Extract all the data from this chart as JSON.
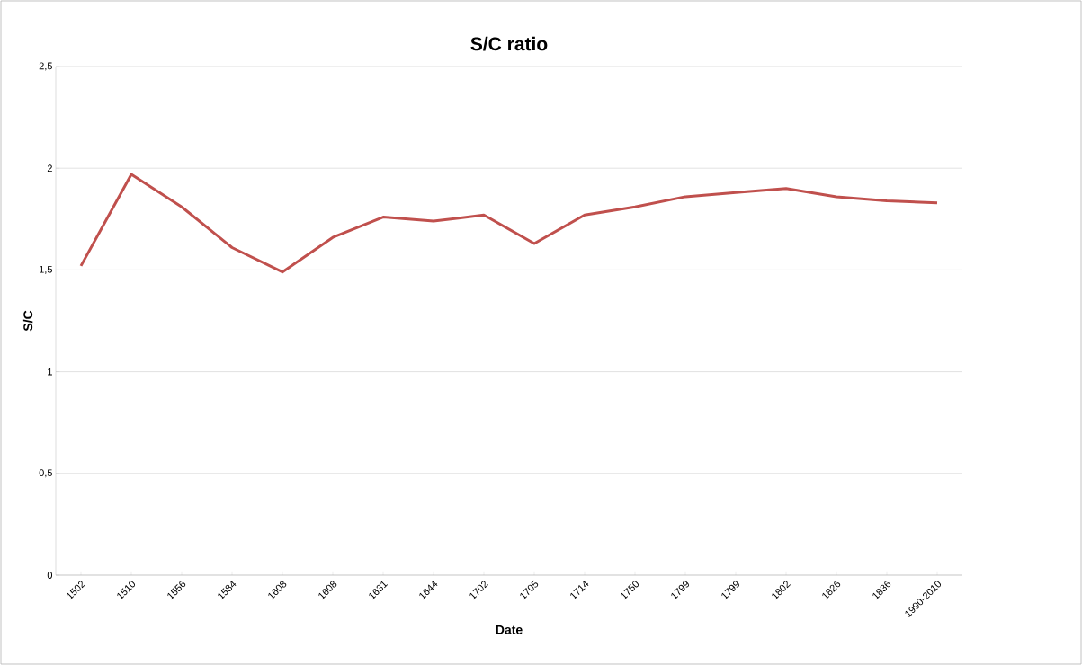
{
  "chart_data": {
    "type": "line",
    "title": "S/C ratio",
    "xlabel": "Date",
    "ylabel": "S/C",
    "categories": [
      "1502",
      "1510",
      "1556",
      "1584",
      "1608",
      "1608",
      "1631",
      "1644",
      "1702",
      "1705",
      "1714",
      "1750",
      "1799",
      "1799",
      "1802",
      "1826",
      "1836",
      "1990-2010"
    ],
    "series": [
      {
        "color": "#c0504d",
        "values": [
          1.52,
          1.97,
          1.81,
          1.61,
          1.49,
          1.66,
          1.76,
          1.74,
          1.77,
          1.63,
          1.77,
          1.81,
          1.86,
          1.88,
          1.9,
          1.86,
          1.84,
          1.83
        ]
      }
    ],
    "ylim": [
      0,
      2.5
    ],
    "yticks": [
      {
        "value": 0,
        "label": "0"
      },
      {
        "value": 0.5,
        "label": "0,5"
      },
      {
        "value": 1,
        "label": "1"
      },
      {
        "value": 1.5,
        "label": "1,5"
      },
      {
        "value": 2,
        "label": "2"
      },
      {
        "value": 2.5,
        "label": "2,5"
      }
    ],
    "grid": "y"
  }
}
